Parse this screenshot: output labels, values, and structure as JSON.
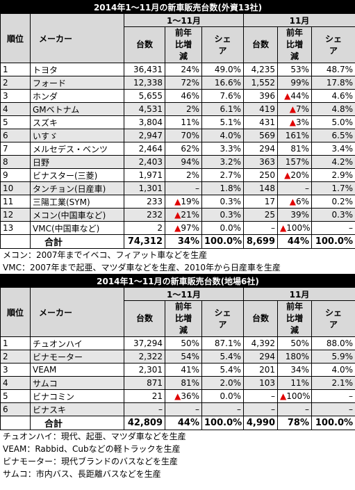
{
  "tables": [
    {
      "title": "2014年1～11月の新車販売台数(外資13社)",
      "header": {
        "rank": "順位",
        "maker": "メーカー",
        "periods": [
          "1～11月",
          "11月"
        ],
        "columns": [
          "台数",
          "前年比増減",
          "シェア",
          "台数",
          "前年比増減",
          "シェア"
        ]
      },
      "rows": [
        [
          "1",
          "トヨタ",
          "36,431",
          "24%",
          "49.0%",
          "4,235",
          "53%",
          "48.7%"
        ],
        [
          "2",
          "フォード",
          "12,338",
          "72%",
          "16.6%",
          "1,552",
          "99%",
          "17.8%"
        ],
        [
          "3",
          "ホンダ",
          "5,655",
          "46%",
          "7.6%",
          "396",
          "▲44%",
          "4.6%"
        ],
        [
          "4",
          "GMベトナム",
          "4,531",
          "2%",
          "6.1%",
          "419",
          "▲7%",
          "4.8%"
        ],
        [
          "5",
          "スズキ",
          "3,804",
          "11%",
          "5.1%",
          "431",
          "▲3%",
          "5.0%"
        ],
        [
          "6",
          "いすゞ",
          "2,947",
          "70%",
          "4.0%",
          "569",
          "161%",
          "6.5%"
        ],
        [
          "7",
          "メルセデス・ベンツ",
          "2,464",
          "62%",
          "3.3%",
          "294",
          "81%",
          "3.4%"
        ],
        [
          "8",
          "日野",
          "2,403",
          "94%",
          "3.2%",
          "363",
          "157%",
          "4.2%"
        ],
        [
          "9",
          "ビナスター(三菱)",
          "1,971",
          "2%",
          "2.7%",
          "250",
          "▲20%",
          "2.9%"
        ],
        [
          "10",
          "タンチョン(日産車)",
          "1,301",
          "–",
          "1.8%",
          "148",
          "–",
          "1.7%"
        ],
        [
          "11",
          "三陽工業(SYM)",
          "233",
          "▲19%",
          "0.3%",
          "17",
          "▲6%",
          "0.2%"
        ],
        [
          "12",
          "メコン(中国車など)",
          "232",
          "▲21%",
          "0.3%",
          "25",
          "39%",
          "0.3%"
        ],
        [
          "13",
          "VMC(中国車など)",
          "2",
          "▲97%",
          "0.0%",
          "–",
          "▲100%",
          "–"
        ]
      ],
      "total": {
        "label": "合計",
        "cells": [
          "74,312",
          "34%",
          "100.0%",
          "8,699",
          "44%",
          "100.0%"
        ]
      },
      "notes": [
        "メコン：2007年までイベコ、フィアット車などを生産",
        "VMC：2007年まで起亜、マツダ車などを生産、2010年から日産車を生産"
      ]
    },
    {
      "title": "2014年1～11月の新車販売台数(地場6社)",
      "header": {
        "rank": "順位",
        "maker": "メーカー",
        "periods": [
          "1～11月",
          "11月"
        ],
        "columns": [
          "台数",
          "前年比増減",
          "シェア",
          "台数",
          "前年比増減",
          "シェア"
        ]
      },
      "rows": [
        [
          "1",
          "チュオンハイ",
          "37,294",
          "50%",
          "87.1%",
          "4,392",
          "50%",
          "88.0%"
        ],
        [
          "2",
          "ビナモーター",
          "2,322",
          "54%",
          "5.4%",
          "294",
          "180%",
          "5.9%"
        ],
        [
          "3",
          "VEAM",
          "2,301",
          "41%",
          "5.4%",
          "201",
          "34%",
          "4.0%"
        ],
        [
          "4",
          "サムコ",
          "871",
          "81%",
          "2.0%",
          "103",
          "11%",
          "2.1%"
        ],
        [
          "5",
          "ビナコミン",
          "21",
          "▲36%",
          "0.0%",
          "–",
          "▲100%",
          "–"
        ],
        [
          "6",
          "ビナスキ",
          "–",
          "–",
          "–",
          "–",
          "–",
          "–"
        ]
      ],
      "total": {
        "label": "合計",
        "cells": [
          "42,809",
          "44%",
          "100.0%",
          "4,990",
          "78%",
          "100.0%"
        ]
      },
      "notes": [
        "チュオンハイ：現代、起亜、マツダ車などを生産",
        "VEAM：Rabbid、Cubなどの軽トラックを生産",
        "ビナモーター：現代ブランドのバスなどを生産",
        "サムコ：市内バス、長距離バスなどを生産"
      ]
    }
  ]
}
